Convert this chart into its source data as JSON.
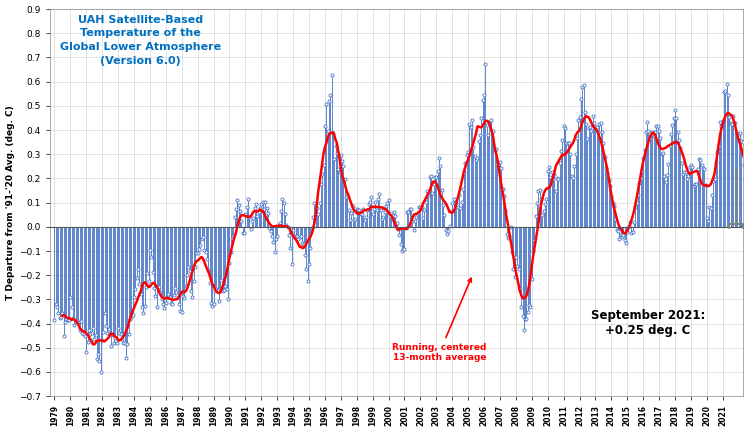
{
  "title": "UAH Satellite-Based\nTemperature of the\nGlobal Lower Atmosphere\n(Version 6.0)",
  "ylabel": "T Departure from '91-'20 Avg. (deg. C)",
  "ylim": [
    -0.7,
    0.9
  ],
  "yticks": [
    -0.7,
    -0.6,
    -0.5,
    -0.4,
    -0.3,
    -0.2,
    -0.1,
    0.0,
    0.1,
    0.2,
    0.3,
    0.4,
    0.5,
    0.6,
    0.7,
    0.8,
    0.9
  ],
  "title_color": "#0070C0",
  "annotation_red": "Running, centered\n13-month average",
  "annotation_black": "September 2021:\n+0.25 deg. C",
  "monthly_data": [
    -0.385,
    -0.321,
    -0.33,
    -0.356,
    -0.377,
    -0.374,
    -0.356,
    -0.452,
    -0.395,
    -0.382,
    -0.387,
    -0.384,
    -0.289,
    -0.33,
    -0.377,
    -0.405,
    -0.394,
    -0.388,
    -0.393,
    -0.427,
    -0.39,
    -0.439,
    -0.441,
    -0.452,
    -0.516,
    -0.475,
    -0.426,
    -0.444,
    -0.438,
    -0.417,
    -0.465,
    -0.449,
    -0.546,
    -0.527,
    -0.553,
    -0.601,
    -0.467,
    -0.436,
    -0.358,
    -0.411,
    -0.44,
    -0.423,
    -0.443,
    -0.494,
    -0.449,
    -0.479,
    -0.461,
    -0.482,
    -0.418,
    -0.44,
    -0.443,
    -0.462,
    -0.479,
    -0.481,
    -0.542,
    -0.484,
    -0.444,
    -0.383,
    -0.372,
    -0.366,
    -0.289,
    -0.257,
    -0.21,
    -0.173,
    -0.238,
    -0.276,
    -0.332,
    -0.357,
    -0.328,
    -0.247,
    -0.192,
    -0.225,
    -0.097,
    -0.125,
    -0.185,
    -0.251,
    -0.288,
    -0.33,
    -0.25,
    -0.249,
    -0.271,
    -0.3,
    -0.318,
    -0.336,
    -0.316,
    -0.293,
    -0.277,
    -0.292,
    -0.316,
    -0.317,
    -0.283,
    -0.254,
    -0.271,
    -0.291,
    -0.32,
    -0.349,
    -0.351,
    -0.286,
    -0.293,
    -0.244,
    -0.198,
    -0.168,
    -0.184,
    -0.264,
    -0.289,
    -0.226,
    -0.168,
    -0.11,
    -0.108,
    -0.09,
    -0.075,
    -0.052,
    -0.042,
    -0.096,
    -0.105,
    -0.135,
    -0.178,
    -0.232,
    -0.313,
    -0.327,
    -0.321,
    -0.266,
    -0.255,
    -0.263,
    -0.306,
    -0.257,
    -0.218,
    -0.265,
    -0.261,
    -0.246,
    -0.258,
    -0.3,
    -0.148,
    -0.105,
    -0.052,
    -0.039,
    0.04,
    0.072,
    0.109,
    0.092,
    0.066,
    0.023,
    -0.024,
    -0.027,
    0.053,
    0.083,
    0.115,
    0.041,
    -0.011,
    0.022,
    0.037,
    0.079,
    0.096,
    0.046,
    0.061,
    0.079,
    0.094,
    0.103,
    0.072,
    0.102,
    0.077,
    0.059,
    -0.006,
    -0.017,
    -0.036,
    -0.064,
    -0.103,
    -0.049,
    -0.036,
    0.008,
    0.016,
    0.064,
    0.114,
    0.097,
    0.052,
    0.006,
    0.0,
    -0.034,
    -0.086,
    -0.155,
    -0.014,
    -0.036,
    -0.042,
    -0.038,
    -0.052,
    -0.044,
    -0.04,
    -0.068,
    -0.07,
    -0.117,
    -0.175,
    -0.226,
    -0.152,
    -0.088,
    -0.006,
    0.04,
    0.099,
    0.077,
    0.078,
    0.054,
    0.097,
    0.175,
    0.218,
    0.256,
    0.418,
    0.508,
    0.394,
    0.519,
    0.544,
    0.629,
    0.389,
    0.279,
    0.333,
    0.307,
    0.239,
    0.228,
    0.297,
    0.273,
    0.252,
    0.199,
    0.123,
    0.132,
    0.07,
    0.028,
    0.059,
    0.088,
    0.028,
    0.033,
    0.073,
    0.069,
    0.068,
    0.053,
    0.052,
    0.073,
    0.027,
    0.042,
    0.07,
    0.093,
    0.101,
    0.124,
    0.051,
    0.074,
    0.103,
    0.068,
    0.115,
    0.137,
    0.071,
    0.031,
    0.04,
    0.062,
    0.088,
    0.097,
    0.112,
    0.043,
    0.056,
    0.028,
    0.061,
    0.044,
    0.016,
    -0.008,
    -0.034,
    -0.07,
    -0.098,
    -0.093,
    -0.093,
    -0.007,
    0.061,
    0.063,
    0.075,
    0.073,
    0.023,
    -0.012,
    0.023,
    0.04,
    0.058,
    0.083,
    0.08,
    0.083,
    0.035,
    0.071,
    0.104,
    0.15,
    0.131,
    0.205,
    0.208,
    0.141,
    0.176,
    0.204,
    0.204,
    0.229,
    0.283,
    0.253,
    0.152,
    0.092,
    0.049,
    -0.014,
    -0.028,
    -0.018,
    0.002,
    0.065,
    0.1,
    0.115,
    0.099,
    0.099,
    0.081,
    0.132,
    0.076,
    0.104,
    0.158,
    0.224,
    0.262,
    0.298,
    0.31,
    0.426,
    0.414,
    0.443,
    0.328,
    0.294,
    0.276,
    0.285,
    0.354,
    0.378,
    0.451,
    0.525,
    0.546,
    0.672,
    0.42,
    0.381,
    0.428,
    0.443,
    0.392,
    0.396,
    0.316,
    0.322,
    0.258,
    0.243,
    0.268,
    0.241,
    0.157,
    0.126,
    0.065,
    -0.028,
    -0.047,
    -0.037,
    0.0,
    -0.106,
    -0.175,
    -0.207,
    -0.126,
    -0.162,
    -0.176,
    -0.259,
    -0.33,
    -0.37,
    -0.426,
    -0.379,
    -0.383,
    -0.352,
    -0.323,
    -0.333,
    -0.217,
    -0.099,
    -0.056,
    0.044,
    0.099,
    0.147,
    0.152,
    0.116,
    0.049,
    0.066,
    0.093,
    0.113,
    0.232,
    0.248,
    0.206,
    0.225,
    0.196,
    0.219,
    0.147,
    0.2,
    0.198,
    0.265,
    0.314,
    0.357,
    0.416,
    0.408,
    0.346,
    0.345,
    0.346,
    0.302,
    0.208,
    0.2,
    0.251,
    0.302,
    0.366,
    0.44,
    0.454,
    0.527,
    0.579,
    0.587,
    0.473,
    0.423,
    0.362,
    0.407,
    0.411,
    0.394,
    0.456,
    0.431,
    0.411,
    0.412,
    0.393,
    0.424,
    0.43,
    0.393,
    0.347,
    0.289,
    0.243,
    0.224,
    0.192,
    0.168,
    0.128,
    0.1,
    0.087,
    0.031,
    -0.013,
    -0.016,
    -0.051,
    -0.034,
    -0.041,
    -0.033,
    -0.054,
    -0.065,
    -0.023,
    0.004,
    0.02,
    -0.025,
    -0.021,
    0.021,
    0.082,
    0.097,
    0.133,
    0.181,
    0.2,
    0.231,
    0.284,
    0.318,
    0.391,
    0.433,
    0.396,
    0.369,
    0.381,
    0.392,
    0.377,
    0.393,
    0.418,
    0.418,
    0.397,
    0.366,
    0.299,
    0.306,
    0.209,
    0.185,
    0.216,
    0.261,
    0.334,
    0.383,
    0.421,
    0.449,
    0.484,
    0.448,
    0.393,
    0.358,
    0.325,
    0.264,
    0.22,
    0.225,
    0.226,
    0.199,
    0.208,
    0.247,
    0.255,
    0.246,
    0.169,
    0.175,
    0.175,
    0.237,
    0.282,
    0.276,
    0.254,
    0.241,
    0.24,
    0.171,
    0.035,
    0.025,
    0.082,
    0.078,
    0.133,
    0.188,
    0.196,
    0.263,
    0.308,
    0.334,
    0.434,
    0.418,
    0.437,
    0.557,
    0.562,
    0.59,
    0.544,
    0.454,
    0.429,
    0.425,
    0.458,
    0.43,
    0.384,
    0.386,
    0.372,
    0.386,
    0.353,
    0.349,
    0.255,
    0.198,
    0.247,
    0.229,
    0.169,
    0.205,
    0.167,
    0.254
  ]
}
